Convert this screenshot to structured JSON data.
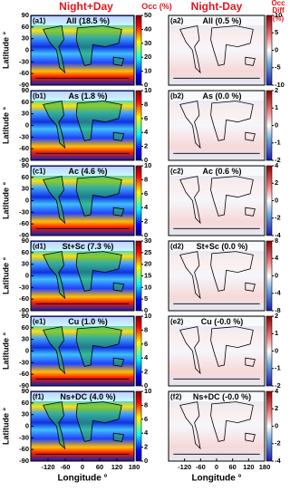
{
  "headers": {
    "left": "Night+Day",
    "right": "Night-Day",
    "left_unit": "Occ (%)",
    "right_unit": "Occ Diff (%)"
  },
  "chart_data": [
    {
      "type": "heatmap",
      "panel": "(a1)",
      "title": "All (18.5 %)",
      "ylabel": "Latitude °",
      "yticks": [
        90,
        60,
        30,
        0,
        -30,
        -60,
        -90
      ],
      "ylim": [
        -90,
        90
      ],
      "xlim": [
        -180,
        180
      ],
      "colormap": "jet",
      "clim": [
        0,
        50
      ],
      "cticks": [
        0,
        10,
        20,
        30,
        40,
        50
      ]
    },
    {
      "type": "heatmap",
      "panel": "(a2)",
      "title": "All (0.5 %)",
      "ylim": [
        -90,
        90
      ],
      "xlim": [
        -180,
        180
      ],
      "colormap": "diverging",
      "clim": [
        -10,
        10
      ],
      "cticks": [
        -10,
        -5,
        0,
        5,
        10
      ]
    },
    {
      "type": "heatmap",
      "panel": "(b1)",
      "title": "As (1.8 %)",
      "ylabel": "Latitude °",
      "yticks": [
        90,
        60,
        30,
        0,
        -30,
        -60,
        -90
      ],
      "ylim": [
        -90,
        90
      ],
      "xlim": [
        -180,
        180
      ],
      "colormap": "jet",
      "clim": [
        0,
        10
      ],
      "cticks": [
        0,
        2,
        4,
        6,
        8,
        10
      ]
    },
    {
      "type": "heatmap",
      "panel": "(b2)",
      "title": "As (0.0 %)",
      "ylim": [
        -90,
        90
      ],
      "xlim": [
        -180,
        180
      ],
      "colormap": "diverging",
      "clim": [
        -2,
        2
      ],
      "cticks": [
        -2,
        -1,
        0,
        1,
        2
      ]
    },
    {
      "type": "heatmap",
      "panel": "(c1)",
      "title": "Ac (4.6 %)",
      "ylabel": "Latitude °",
      "yticks": [
        90,
        60,
        30,
        0,
        -30,
        -60,
        -90
      ],
      "ylim": [
        -90,
        90
      ],
      "xlim": [
        -180,
        180
      ],
      "colormap": "jet",
      "clim": [
        0,
        10
      ],
      "cticks": [
        0,
        2,
        4,
        6,
        8,
        10
      ]
    },
    {
      "type": "heatmap",
      "panel": "(c2)",
      "title": "Ac (0.6 %)",
      "ylim": [
        -90,
        90
      ],
      "xlim": [
        -180,
        180
      ],
      "colormap": "diverging",
      "clim": [
        -4,
        4
      ],
      "cticks": [
        -4,
        -2,
        0,
        2,
        4
      ]
    },
    {
      "type": "heatmap",
      "panel": "(d1)",
      "title": "St+Sc (7.3 %)",
      "ylabel": "Latitude °",
      "yticks": [
        90,
        60,
        30,
        0,
        -30,
        -60,
        -90
      ],
      "ylim": [
        -90,
        90
      ],
      "xlim": [
        -180,
        180
      ],
      "colormap": "jet",
      "clim": [
        0,
        30
      ],
      "cticks": [
        0,
        5,
        10,
        15,
        20,
        25,
        30
      ]
    },
    {
      "type": "heatmap",
      "panel": "(d2)",
      "title": "St+Sc (0.0 %)",
      "ylim": [
        -90,
        90
      ],
      "xlim": [
        -180,
        180
      ],
      "colormap": "diverging",
      "clim": [
        -8,
        8
      ],
      "cticks": [
        -8,
        -4,
        0,
        4,
        8
      ]
    },
    {
      "type": "heatmap",
      "panel": "(e1)",
      "title": "Cu (1.0 %)",
      "ylabel": "Latitude °",
      "yticks": [
        90,
        60,
        30,
        0,
        -30,
        -60,
        -90
      ],
      "ylim": [
        -90,
        90
      ],
      "xlim": [
        -180,
        180
      ],
      "colormap": "jet",
      "clim": [
        0,
        10
      ],
      "cticks": [
        0,
        2,
        4,
        6,
        8,
        10
      ]
    },
    {
      "type": "heatmap",
      "panel": "(e2)",
      "title": "Cu (-0.0 %)",
      "ylim": [
        -90,
        90
      ],
      "xlim": [
        -180,
        180
      ],
      "colormap": "diverging",
      "clim": [
        -2,
        2
      ],
      "cticks": [
        -2,
        -1,
        0,
        1,
        2
      ]
    },
    {
      "type": "heatmap",
      "panel": "(f1)",
      "title": "Ns+DC (4.0 %)",
      "ylabel": "Latitude °",
      "yticks": [
        90,
        60,
        30,
        0,
        -30,
        -60,
        -90
      ],
      "ylim": [
        -90,
        90
      ],
      "xlim": [
        -180,
        180
      ],
      "xticks": [
        -120,
        -60,
        0,
        60,
        120,
        180
      ],
      "xlabel": "Longitude °",
      "colormap": "jet",
      "clim": [
        0,
        10
      ],
      "cticks": [
        0,
        2,
        4,
        6,
        8,
        10
      ]
    },
    {
      "type": "heatmap",
      "panel": "(f2)",
      "title": "Ns+DC (-0.0 %)",
      "ylim": [
        -90,
        90
      ],
      "xlim": [
        -180,
        180
      ],
      "xticks": [
        -120,
        -60,
        0,
        60,
        120,
        180
      ],
      "xlabel": "Longitude °",
      "colormap": "diverging",
      "clim": [
        -4,
        4
      ],
      "cticks": [
        -4,
        -2,
        0,
        2,
        4
      ]
    }
  ]
}
